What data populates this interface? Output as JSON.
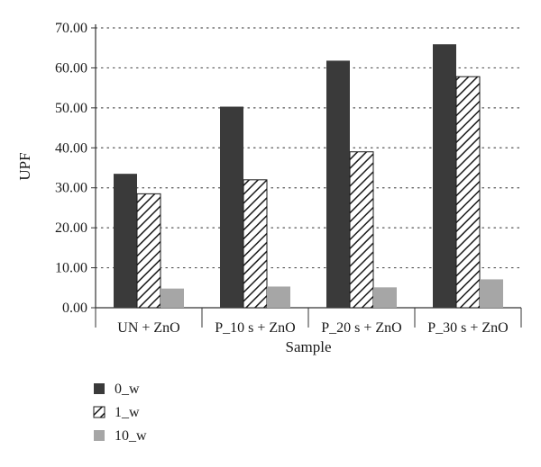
{
  "chart_data": {
    "type": "bar",
    "title": "",
    "xlabel": "Sample",
    "ylabel": "UPF",
    "categories": [
      "UN + ZnO",
      "P_10 s + ZnO",
      "P_20 s + ZnO",
      "P_30 s + ZnO"
    ],
    "ylim": [
      0,
      70
    ],
    "yticks": [
      "0.00",
      "10.00",
      "20.00",
      "30.00",
      "40.00",
      "50.00",
      "60.00",
      "70.00"
    ],
    "grid": "horizontal-dotted",
    "legend_position": "bottom-left",
    "series": [
      {
        "name": "0_w",
        "values": [
          33.5,
          50.3,
          61.8,
          65.9
        ],
        "color": "#3a3a3a",
        "pattern": "solid"
      },
      {
        "name": "1_w",
        "values": [
          28.5,
          32.0,
          39.0,
          57.8
        ],
        "color": "#ffffff",
        "pattern": "diagonal-hatch"
      },
      {
        "name": "10_w",
        "values": [
          4.8,
          5.3,
          5.1,
          7.1
        ],
        "color": "#a6a6a6",
        "pattern": "solid"
      }
    ]
  }
}
